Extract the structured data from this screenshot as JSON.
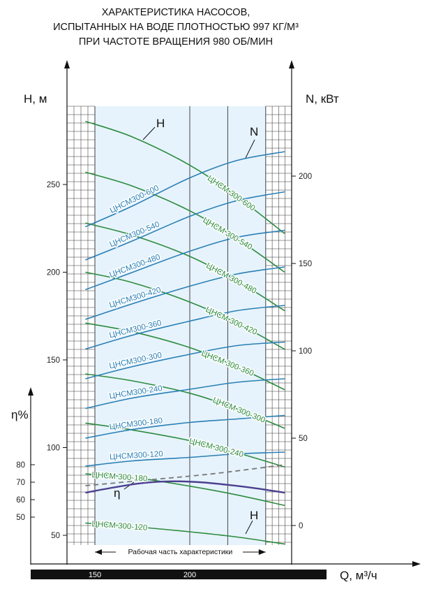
{
  "title_lines": [
    "ХАРАКТЕРИСТИКА НАСОСОВ,",
    "ИСПЫТАННЫХ НА ВОДЕ ПЛОТНОСТЬЮ 997 КГ/М³",
    "ПРИ ЧАСТОТЕ ВРАЩЕНИЯ 980 ОБ/МИН"
  ],
  "colors": {
    "head_curves": "#2e8b3e",
    "power_curves": "#2a7fb5",
    "efficiency_curve": "#4b3f8f",
    "efficiency_dashed": "#777777",
    "work_zone_fill": "#e6f3fc",
    "grid": "#333333",
    "q_bar": "#111111"
  },
  "chart_data": {
    "type": "line",
    "title": "ХАРАКТЕРИСТИКА НАСОСОВ, ИСПЫТАННЫХ НА ВОДЕ ПЛОТНОСТЬЮ 997 КГ/М³ ПРИ ЧАСТОТЕ ВРАЩЕНИЯ 980 ОБ/МИН",
    "xlabel": "Q, м³/ч",
    "x_ticks": [
      150,
      200
    ],
    "x_tick_labels": [
      "150",
      "200"
    ],
    "xlim": [
      144.5,
      251.6
    ],
    "work_range_label": "Рабочая часть характеристики",
    "work_range": [
      150,
      240
    ],
    "grid": true,
    "axes": {
      "head": {
        "label": "H, м",
        "ticks": [
          50,
          100,
          150,
          200,
          250
        ],
        "tick_labels": [
          "50",
          "100",
          "150",
          "200",
          "250"
        ],
        "range": [
          45,
          290
        ]
      },
      "power": {
        "label": "N, кВт",
        "ticks": [
          0,
          50,
          100,
          150,
          200
        ],
        "tick_labels": [
          "0",
          "50",
          "100",
          "150",
          "200"
        ],
        "range": [
          -5,
          220
        ]
      },
      "efficiency": {
        "label": "η%",
        "ticks": [
          50,
          60,
          70,
          80
        ],
        "tick_labels": [
          "50",
          "60",
          "70",
          "80"
        ],
        "range": [
          50,
          80
        ]
      }
    },
    "curve_letters": [
      "H",
      "N",
      "η",
      "H"
    ],
    "head_curves": [
      {
        "name": "ЦНСМ 300-600",
        "x": [
          145,
          170,
          200,
          225,
          250
        ],
        "y": [
          286,
          277,
          261,
          243,
          222
        ]
      },
      {
        "name": "ЦНСМ 300-540",
        "x": [
          145,
          170,
          200,
          225,
          250
        ],
        "y": [
          257,
          249,
          235,
          219,
          200
        ]
      },
      {
        "name": "ЦНСМ 300-480",
        "x": [
          145,
          170,
          200,
          225,
          250
        ],
        "y": [
          228,
          221,
          209,
          195,
          178
        ]
      },
      {
        "name": "ЦНСМ 300-420",
        "x": [
          145,
          170,
          200,
          225,
          250
        ],
        "y": [
          200,
          194,
          183,
          171,
          156
        ]
      },
      {
        "name": "ЦНСМ 300-360",
        "x": [
          145,
          170,
          200,
          225,
          250
        ],
        "y": [
          171,
          166,
          157,
          146,
          133
        ]
      },
      {
        "name": "ЦНСМ 300-300",
        "x": [
          145,
          170,
          200,
          225,
          250
        ],
        "y": [
          142,
          138,
          131,
          122,
          111
        ]
      },
      {
        "name": "ЦНСМ 300-240",
        "x": [
          145,
          170,
          200,
          225,
          250
        ],
        "y": [
          114,
          110,
          104,
          97,
          89
        ]
      },
      {
        "name": "ЦНСМ 300-180",
        "x": [
          145,
          170,
          200,
          225,
          250
        ],
        "y": [
          85,
          83,
          78,
          73,
          67
        ]
      },
      {
        "name": "ЦНСМ 300-120",
        "x": [
          145,
          170,
          200,
          225,
          250
        ],
        "y": [
          57,
          55,
          52,
          49,
          45
        ]
      }
    ],
    "power_curves": [
      {
        "name": "ЦНСМ300-600",
        "x": [
          145,
          170,
          200,
          225,
          250
        ],
        "y": [
          171,
          183,
          199,
          209,
          214
        ]
      },
      {
        "name": "ЦНСМ300-540",
        "x": [
          145,
          170,
          200,
          225,
          250
        ],
        "y": [
          152,
          163,
          177,
          186,
          191
        ]
      },
      {
        "name": "ЦНСМ300-480",
        "x": [
          145,
          170,
          200,
          225,
          250
        ],
        "y": [
          135,
          145,
          157,
          165,
          169
        ]
      },
      {
        "name": "ЦНСМ300-420",
        "x": [
          145,
          170,
          200,
          225,
          250
        ],
        "y": [
          118,
          127,
          137,
          144,
          148
        ]
      },
      {
        "name": "ЦНСМ300-360",
        "x": [
          145,
          170,
          200,
          225,
          250
        ],
        "y": [
          101,
          109,
          117,
          123,
          126
        ]
      },
      {
        "name": "ЦНСМ300-300",
        "x": [
          145,
          170,
          200,
          225,
          250
        ],
        "y": [
          84,
          91,
          98,
          103,
          105
        ]
      },
      {
        "name": "ЦНСМ300-240",
        "x": [
          145,
          170,
          200,
          225,
          250
        ],
        "y": [
          67,
          73,
          78,
          82,
          84
        ]
      },
      {
        "name": "ЦНСМ300-180",
        "x": [
          145,
          170,
          200,
          225,
          250
        ],
        "y": [
          50,
          55,
          59,
          61,
          63
        ]
      },
      {
        "name": "ЦНСМ300-120",
        "x": [
          145,
          170,
          200,
          225,
          250
        ],
        "y": [
          34,
          37,
          39,
          41,
          42
        ]
      }
    ],
    "efficiency_curve": {
      "name": "η",
      "x": [
        145,
        160,
        175,
        190,
        205,
        220,
        235,
        250
      ],
      "y": [
        64,
        67,
        69.5,
        70.5,
        70,
        68.5,
        66.5,
        64
      ]
    },
    "efficiency_dashed": {
      "x": [
        145,
        175,
        205,
        225,
        250
      ],
      "y": [
        68,
        71,
        74,
        76.5,
        80
      ]
    }
  }
}
